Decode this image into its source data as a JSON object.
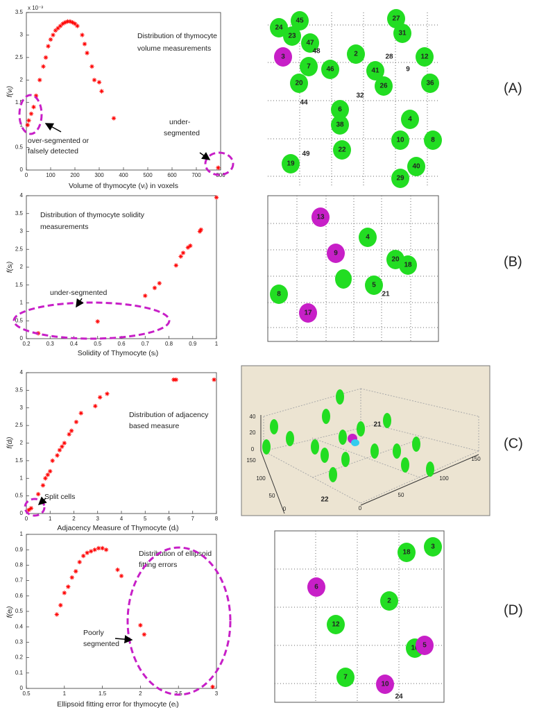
{
  "chart_data": [
    {
      "type": "scatter",
      "color": "#ff0000",
      "x_label": "Volume of thymocyte (vᵢ) in voxels",
      "y_label": "f(vᵢ)",
      "y_scale_label": "x 10⁻³",
      "annotations": [
        "Distribution of thymocyte",
        "volume measurements",
        "over-segmented or",
        "falsely detected",
        "under-",
        "segmented"
      ],
      "x": [
        5,
        10,
        20,
        30,
        40,
        55,
        70,
        80,
        90,
        100,
        110,
        120,
        130,
        140,
        150,
        160,
        170,
        180,
        190,
        200,
        210,
        230,
        240,
        250,
        270,
        280,
        300,
        310,
        360,
        790
      ],
      "values": [
        1.0,
        1.1,
        1.25,
        1.4,
        1.65,
        2.0,
        2.3,
        2.5,
        2.75,
        2.9,
        3.0,
        3.1,
        3.15,
        3.2,
        3.25,
        3.28,
        3.3,
        3.3,
        3.28,
        3.25,
        3.2,
        3.0,
        2.8,
        2.6,
        2.3,
        2.0,
        1.95,
        1.75,
        1.15,
        0.05
      ],
      "xlim": [
        0,
        800
      ],
      "xticks": [
        0,
        100,
        200,
        300,
        400,
        500,
        600,
        700,
        800
      ],
      "ylim": [
        0,
        3.5
      ],
      "yticks": [
        0,
        0.5,
        1,
        1.5,
        2,
        2.5,
        3,
        3.5
      ]
    },
    {
      "type": "scatter",
      "color": "#ff0000",
      "x_label": "Solidity of Thymocyte (sᵢ)",
      "y_label": "f(sᵢ)",
      "annotations": [
        "Distribution of thymocyte solidity",
        "measurements",
        "under-segmented"
      ],
      "x": [
        0.25,
        0.5,
        0.7,
        0.74,
        0.76,
        0.83,
        0.85,
        0.86,
        0.88,
        0.89,
        0.93,
        0.935,
        1.0
      ],
      "values": [
        0.15,
        0.48,
        1.2,
        1.42,
        1.55,
        2.05,
        2.3,
        2.4,
        2.55,
        2.6,
        3.0,
        3.05,
        3.95
      ],
      "xlim": [
        0.2,
        1
      ],
      "xticks": [
        0.2,
        0.3,
        0.4,
        0.5,
        0.6,
        0.7,
        0.8,
        0.9,
        1
      ],
      "ylim": [
        0,
        4
      ],
      "yticks": [
        0,
        0.5,
        1,
        1.5,
        2,
        2.5,
        3,
        3.5,
        4
      ]
    },
    {
      "type": "scatter",
      "color": "#ff0000",
      "x_label": "Adjacency Measure of Thymocyte (dᵢ)",
      "y_label": "f(dᵢ)",
      "annotations": [
        "Distribution of adjacency",
        "based measure",
        "Split cells"
      ],
      "x": [
        0.1,
        0.2,
        0.5,
        0.7,
        0.8,
        0.9,
        1.0,
        1.1,
        1.3,
        1.4,
        1.5,
        1.6,
        1.8,
        1.9,
        2.1,
        2.3,
        2.9,
        3.1,
        3.4,
        6.2,
        6.3,
        7.9
      ],
      "values": [
        0.1,
        0.15,
        0.55,
        0.8,
        1.0,
        1.1,
        1.2,
        1.5,
        1.65,
        1.8,
        1.9,
        2.0,
        2.25,
        2.35,
        2.6,
        2.85,
        3.05,
        3.3,
        3.4,
        3.8,
        3.8,
        3.8
      ],
      "xlim": [
        0,
        8
      ],
      "xticks": [
        0,
        1,
        2,
        3,
        4,
        5,
        6,
        7,
        8
      ],
      "ylim": [
        0,
        4
      ],
      "yticks": [
        0,
        0.5,
        1,
        1.5,
        2,
        2.5,
        3,
        3.5,
        4
      ]
    },
    {
      "type": "scatter",
      "color": "#ff0000",
      "x_label": "Ellipsoid fitting error for thymocyte (eᵢ)",
      "y_label": "f(eᵢ)",
      "annotations": [
        "Distribution of ellipsoid",
        "fitting errors",
        "Poorly",
        "segmented"
      ],
      "x": [
        0.9,
        0.95,
        1.0,
        1.05,
        1.1,
        1.15,
        1.2,
        1.25,
        1.3,
        1.35,
        1.4,
        1.45,
        1.5,
        1.55,
        1.7,
        1.75,
        2.0,
        2.05,
        2.95
      ],
      "values": [
        0.48,
        0.54,
        0.62,
        0.66,
        0.72,
        0.76,
        0.82,
        0.86,
        0.88,
        0.89,
        0.9,
        0.91,
        0.91,
        0.9,
        0.77,
        0.73,
        0.41,
        0.35,
        0.01
      ],
      "xlim": [
        0.5,
        3
      ],
      "xticks": [
        0.5,
        1,
        1.5,
        2,
        2.5,
        3
      ],
      "ylim": [
        0,
        1
      ],
      "yticks": [
        0,
        0.1,
        0.2,
        0.3,
        0.4,
        0.5,
        0.6,
        0.7,
        0.8,
        0.9,
        1
      ]
    }
  ],
  "panels": [
    {
      "label": "(A)",
      "cell_labels": [
        "45",
        "27",
        "24",
        "23",
        "47",
        "31",
        "3",
        "48",
        "2",
        "28",
        "12",
        "7",
        "46",
        "41",
        "9",
        "20",
        "26",
        "36",
        "32",
        "44",
        "6",
        "38",
        "4",
        "10",
        "8",
        "22",
        "19",
        "40",
        "29",
        "49"
      ]
    },
    {
      "label": "(B)",
      "cell_labels": [
        "13",
        "4",
        "9",
        "20",
        "18",
        "5",
        "21",
        "8",
        "17"
      ]
    },
    {
      "label": "(C)",
      "cell_labels": [
        "21",
        "22"
      ],
      "tick_labels": [
        "40",
        "20",
        "0",
        "150",
        "100",
        "50",
        "0",
        "0",
        "50",
        "100",
        "150"
      ]
    },
    {
      "label": "(D)",
      "cell_labels": [
        "18",
        "3",
        "6",
        "12",
        "2",
        "16",
        "5",
        "7",
        "10",
        "24"
      ]
    }
  ]
}
